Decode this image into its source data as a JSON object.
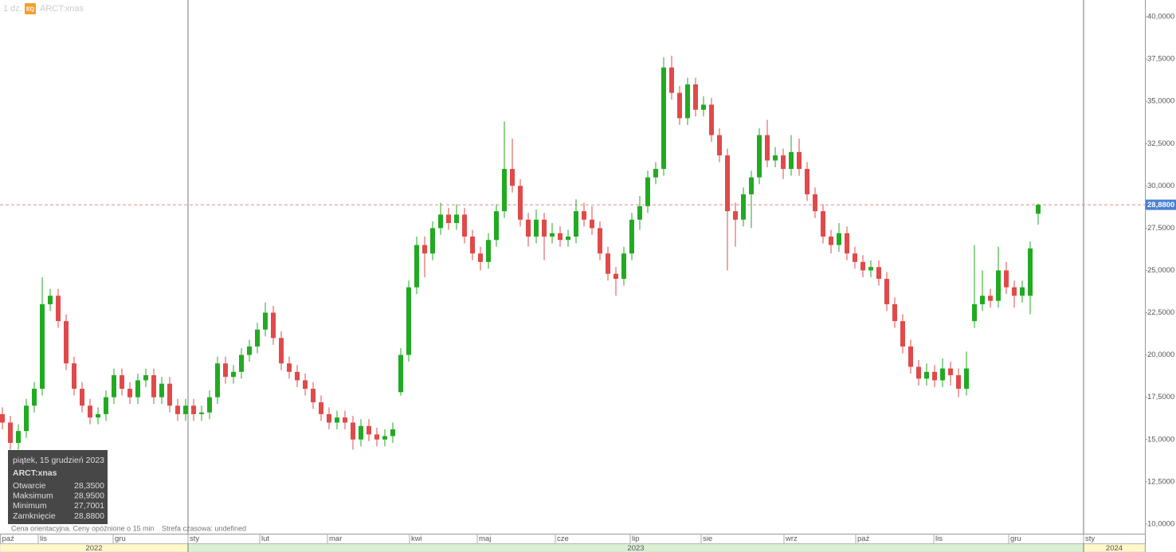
{
  "chart_data": {
    "type": "candlestick",
    "interval": "1 dz.",
    "badge": "EQ",
    "symbol": "ARCT:xnas",
    "up_color": "#22aa22",
    "down_color": "#e04a4a",
    "open": [
      16.5,
      16.0,
      14.8,
      15.5,
      17.0,
      18.0,
      23.0,
      23.5,
      22.0,
      19.5,
      18.0,
      17.0,
      16.3,
      16.5,
      17.5,
      18.8,
      18.0,
      17.5,
      18.5,
      18.8,
      17.5,
      18.3,
      17.0,
      16.5,
      17.0,
      16.5,
      16.6,
      17.5,
      19.5,
      18.7,
      19.0,
      20.0,
      20.5,
      21.5,
      22.5,
      21.0,
      19.5,
      19.0,
      18.5,
      18.0,
      17.2,
      16.5,
      16.0,
      16.3,
      16.0,
      15.0,
      15.8,
      15.3,
      15.0,
      15.2,
      17.8,
      20.0,
      24.0,
      26.5,
      26.0,
      27.5,
      28.3,
      27.8,
      28.3,
      27.0,
      26.0,
      25.5,
      26.8,
      28.5,
      31.0,
      30.0,
      28.0,
      27.0,
      28.0,
      27.0,
      27.2,
      26.8,
      27.0,
      28.5,
      28.0,
      27.5,
      26.0,
      24.8,
      24.5,
      26.0,
      28.0,
      28.8,
      30.5,
      31.0,
      37.0,
      35.5,
      34.0,
      36.0,
      34.5,
      34.8,
      33.0,
      31.8,
      28.5,
      28.0,
      29.5,
      30.5,
      33.0,
      31.5,
      31.8,
      31.0,
      32.0,
      31.0,
      29.5,
      28.5,
      27.0,
      26.5,
      27.2,
      26.0,
      25.5,
      25.0,
      25.2,
      24.5,
      23.0,
      22.0,
      20.5,
      19.3,
      18.6,
      19.0,
      18.5,
      19.2,
      18.8,
      18.0,
      22.0,
      23.0,
      23.5,
      23.2,
      25.0,
      24.0,
      23.5,
      23.5,
      28.35
    ],
    "high": [
      16.9,
      16.4,
      15.9,
      17.4,
      18.4,
      24.6,
      23.9,
      23.9,
      22.4,
      19.9,
      18.4,
      17.4,
      16.9,
      17.9,
      19.2,
      19.2,
      18.4,
      18.9,
      19.2,
      19.2,
      18.7,
      18.7,
      17.4,
      17.4,
      17.4,
      17.0,
      17.9,
      19.9,
      19.9,
      19.4,
      20.4,
      20.9,
      21.9,
      23.1,
      22.9,
      21.4,
      19.9,
      19.4,
      18.9,
      18.4,
      17.6,
      16.9,
      16.7,
      16.7,
      16.4,
      16.2,
      16.2,
      15.7,
      15.6,
      16.0,
      20.4,
      24.4,
      27.0,
      27.0,
      27.9,
      29.0,
      28.7,
      28.9,
      28.7,
      27.4,
      26.4,
      27.2,
      28.9,
      33.8,
      32.8,
      30.4,
      28.4,
      28.6,
      28.4,
      27.8,
      27.6,
      27.4,
      29.2,
      29.0,
      28.8,
      27.9,
      26.4,
      25.2,
      26.4,
      28.4,
      29.4,
      30.9,
      31.4,
      37.6,
      37.7,
      35.9,
      36.4,
      36.4,
      35.3,
      35.2,
      33.4,
      32.2,
      29.0,
      29.9,
      30.9,
      33.4,
      33.9,
      32.3,
      32.2,
      33.0,
      32.8,
      31.4,
      29.9,
      28.9,
      27.4,
      27.8,
      27.6,
      26.4,
      25.9,
      25.6,
      25.6,
      24.9,
      23.4,
      22.4,
      20.9,
      19.7,
      19.5,
      19.4,
      19.8,
      19.6,
      19.2,
      20.2,
      26.5,
      25.0,
      23.9,
      26.4,
      25.5,
      24.4,
      24.4,
      26.7,
      28.95
    ],
    "low": [
      15.6,
      14.4,
      14.4,
      15.1,
      16.6,
      17.6,
      22.6,
      21.6,
      19.1,
      17.6,
      16.6,
      15.9,
      15.9,
      16.1,
      17.1,
      17.6,
      17.1,
      17.1,
      18.1,
      17.1,
      17.1,
      16.6,
      16.1,
      16.1,
      16.1,
      16.1,
      16.2,
      17.1,
      18.3,
      18.3,
      18.6,
      19.6,
      20.1,
      21.1,
      20.6,
      19.1,
      18.6,
      18.1,
      17.6,
      16.8,
      16.1,
      15.6,
      15.6,
      15.6,
      14.4,
      14.6,
      14.9,
      14.6,
      14.6,
      14.8,
      17.6,
      19.6,
      23.6,
      24.6,
      25.6,
      27.1,
      27.4,
      27.4,
      26.6,
      25.6,
      25.0,
      25.1,
      26.4,
      28.1,
      29.6,
      27.6,
      26.4,
      26.6,
      25.6,
      26.6,
      26.4,
      26.4,
      26.6,
      27.6,
      27.1,
      25.6,
      24.4,
      23.5,
      24.1,
      25.6,
      27.4,
      28.4,
      30.1,
      30.6,
      35.1,
      33.6,
      33.6,
      34.1,
      34.1,
      32.6,
      31.4,
      25.0,
      26.4,
      27.6,
      27.5,
      30.1,
      31.1,
      31.1,
      30.4,
      30.6,
      30.6,
      29.1,
      28.1,
      26.6,
      26.0,
      26.1,
      25.6,
      25.1,
      24.6,
      24.6,
      24.1,
      22.6,
      21.6,
      20.1,
      18.9,
      18.2,
      18.2,
      18.1,
      18.1,
      18.2,
      17.5,
      17.6,
      21.6,
      22.6,
      22.8,
      22.8,
      23.6,
      22.8,
      23.1,
      22.4,
      27.7001
    ],
    "close": [
      16.0,
      14.8,
      15.5,
      17.0,
      18.0,
      23.0,
      23.5,
      22.0,
      19.5,
      18.0,
      17.0,
      16.3,
      16.5,
      17.5,
      18.8,
      18.0,
      17.5,
      18.5,
      18.8,
      17.5,
      18.3,
      17.0,
      16.5,
      17.0,
      16.5,
      16.6,
      17.5,
      19.5,
      18.7,
      19.0,
      20.0,
      20.5,
      21.5,
      22.5,
      21.0,
      19.5,
      19.0,
      18.5,
      18.0,
      17.2,
      16.5,
      16.0,
      16.3,
      16.0,
      15.0,
      15.8,
      15.3,
      15.0,
      15.2,
      15.6,
      20.0,
      24.0,
      26.5,
      26.0,
      27.5,
      28.3,
      27.8,
      28.3,
      27.0,
      26.0,
      25.5,
      26.8,
      28.5,
      31.0,
      30.0,
      28.0,
      27.0,
      28.0,
      27.0,
      27.2,
      26.8,
      27.0,
      28.5,
      28.0,
      27.5,
      26.0,
      24.8,
      24.5,
      26.0,
      28.0,
      28.8,
      30.5,
      31.0,
      37.0,
      35.5,
      34.0,
      36.0,
      34.5,
      34.8,
      33.0,
      31.8,
      28.5,
      28.0,
      29.5,
      30.5,
      33.0,
      31.5,
      31.8,
      31.0,
      32.0,
      31.0,
      29.5,
      28.5,
      27.0,
      26.5,
      27.2,
      26.0,
      25.5,
      25.0,
      25.2,
      24.5,
      23.0,
      22.0,
      20.5,
      19.3,
      18.6,
      19.0,
      18.5,
      19.2,
      18.8,
      18.0,
      19.2,
      23.0,
      23.5,
      23.2,
      25.0,
      24.0,
      23.5,
      24.0,
      26.3,
      28.88
    ],
    "xlim": [
      -0.3,
      143.4
    ],
    "ylim": [
      9.43,
      40.99
    ],
    "yticks": [
      {
        "value": 10,
        "label": "10,0000"
      },
      {
        "value": 12.5,
        "label": "12,5000"
      },
      {
        "value": 15,
        "label": "15,0000"
      },
      {
        "value": 17.5,
        "label": "17,5000"
      },
      {
        "value": 20,
        "label": "20,0000"
      },
      {
        "value": 22.5,
        "label": "22,5000"
      },
      {
        "value": 25,
        "label": "25,0000"
      },
      {
        "value": 27.5,
        "label": "27,5000"
      },
      {
        "value": 30,
        "label": "30,0000"
      },
      {
        "value": 32.5,
        "label": "32,5000"
      },
      {
        "value": 35,
        "label": "35,0000"
      },
      {
        "value": 37.5,
        "label": "37,5000"
      },
      {
        "value": 40,
        "label": "40,0000"
      }
    ],
    "xticks": [
      {
        "value": -0.3,
        "label": "paź"
      },
      {
        "value": 4.5,
        "label": "lis"
      },
      {
        "value": 13.9,
        "label": "gru"
      },
      {
        "value": 23.3,
        "label": "sty"
      },
      {
        "value": 32.3,
        "label": "lut"
      },
      {
        "value": 40.8,
        "label": "mar"
      },
      {
        "value": 51.1,
        "label": "kwi"
      },
      {
        "value": 59.6,
        "label": "maj"
      },
      {
        "value": 69.4,
        "label": "cze"
      },
      {
        "value": 78.8,
        "label": "lip"
      },
      {
        "value": 87.7,
        "label": "sie"
      },
      {
        "value": 98.1,
        "label": "wrz"
      },
      {
        "value": 107.1,
        "label": "paź"
      },
      {
        "value": 116.9,
        "label": "lis"
      },
      {
        "value": 126.3,
        "label": "gru"
      },
      {
        "value": 135.7,
        "label": "sty"
      }
    ],
    "years": [
      {
        "value": -0.3,
        "label": "2022"
      },
      {
        "value": 23.3,
        "label": "2023"
      },
      {
        "value": 135.7,
        "label": "2024"
      }
    ],
    "last_price": {
      "value": 28.88,
      "label": "28,8800"
    },
    "tooltip": {
      "date": "piątek, 15 grudzień 2023",
      "symbol": "ARCT:xnas",
      "rows": [
        {
          "label": "Otwarcie",
          "value": "28,3500"
        },
        {
          "label": "Maksimum",
          "value": "28,9500"
        },
        {
          "label": "Minimum",
          "value": "27,7001"
        },
        {
          "label": "Zamknięcie",
          "value": "28,8800"
        }
      ]
    },
    "footer": [
      "Cena orientacyjna. Ceny opóźnione o 15 min",
      "Strefa czasowa: undefined"
    ]
  }
}
